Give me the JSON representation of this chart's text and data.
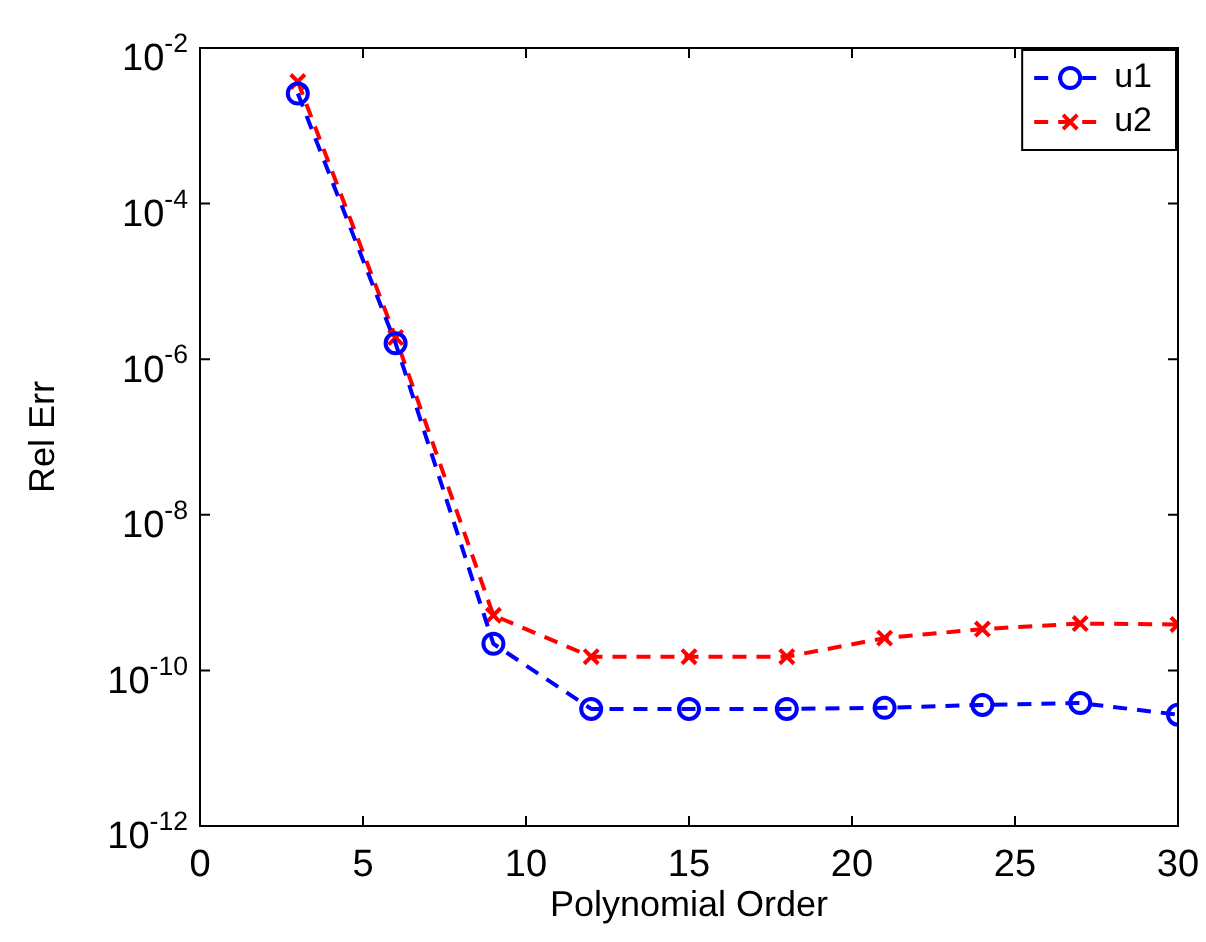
{
  "chart_data": {
    "type": "line",
    "xlabel": "Polynomial Order",
    "ylabel": "Rel Err",
    "x": [
      3,
      6,
      9,
      12,
      15,
      18,
      21,
      24,
      27,
      30
    ],
    "series": [
      {
        "name": "u1",
        "color": "#0000ff",
        "marker": "circle",
        "values": [
          0.0026,
          1.6e-06,
          2.2e-10,
          3.2e-11,
          3.2e-11,
          3.2e-11,
          3.3e-11,
          3.6e-11,
          3.8e-11,
          2.7e-11
        ]
      },
      {
        "name": "u2",
        "color": "#ff0000",
        "marker": "cross",
        "values": [
          0.0037,
          1.9e-06,
          5.1e-10,
          1.5e-10,
          1.5e-10,
          1.5e-10,
          2.6e-10,
          3.4e-10,
          4e-10,
          3.9e-10
        ]
      }
    ],
    "line_style": "dashed",
    "log": "y",
    "grid": false,
    "legend": "top right",
    "xlim": [
      0,
      30
    ],
    "xticks": [
      0,
      5,
      10,
      15,
      20,
      25,
      30
    ],
    "ylim": [
      1e-12,
      0.01
    ],
    "yticks": [
      {
        "value": 1e-12,
        "label": "10$^{-12}$"
      },
      {
        "value": 1e-10,
        "label": "10$^{-10}$"
      },
      {
        "value": 1e-08,
        "label": "10$^{-8}$"
      },
      {
        "value": 1e-06,
        "label": "10$^{-6}$"
      },
      {
        "value": 0.0001,
        "label": "10$^{-4}$"
      },
      {
        "value": 0.01,
        "label": "10$^{-2}$"
      }
    ]
  }
}
